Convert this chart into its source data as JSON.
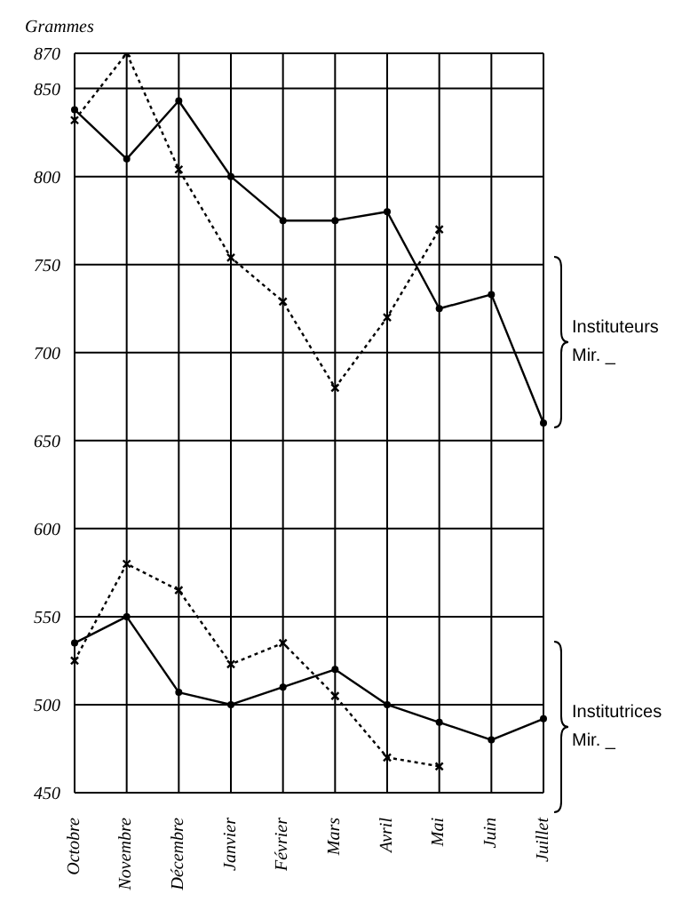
{
  "chart_data": {
    "type": "line",
    "ylabel": "Grammes",
    "categories": [
      "Octobre",
      "Novembre",
      "Décembre",
      "Janvier",
      "Février",
      "Mars",
      "Avril",
      "Mai",
      "Juin",
      "Juillet"
    ],
    "series": [
      {
        "color": "#000000",
        "line_style": "solid",
        "marker": "circle",
        "values": [
          838,
          810,
          843,
          800,
          775,
          775,
          780,
          725,
          733,
          660
        ]
      },
      {
        "color": "#000000",
        "line_style": "dotted",
        "marker": "cross",
        "values": [
          832,
          870,
          804,
          754,
          729,
          680,
          720,
          770,
          null,
          null
        ]
      },
      {
        "color": "#000000",
        "line_style": "solid",
        "marker": "circle",
        "values": [
          535,
          550,
          507,
          500,
          510,
          520,
          500,
          490,
          480,
          492
        ]
      },
      {
        "color": "#000000",
        "line_style": "dotted",
        "marker": "cross",
        "values": [
          525,
          580,
          565,
          523,
          535,
          505,
          470,
          465,
          null,
          null
        ]
      }
    ],
    "ylim": [
      450,
      870
    ],
    "yticks": [
      450,
      500,
      550,
      600,
      650,
      700,
      750,
      800,
      850,
      870
    ],
    "grid": true,
    "legend": false,
    "annotations": [
      "Instituteurs",
      "Mir. _",
      "Institutrices",
      "Mir. _"
    ]
  }
}
